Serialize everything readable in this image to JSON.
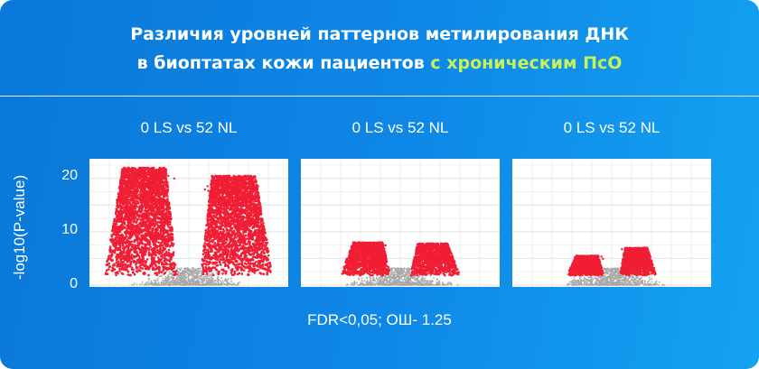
{
  "header": {
    "title_line1": "Различия уровней паттернов метилирования ДНК",
    "title_line2_prefix": "в биоптатах кожи  пациентов ",
    "title_line2_highlight": "с хроническим ПсО"
  },
  "footnote": "FDR<0,05; ОШ- 1.25",
  "colors": {
    "significant": "#f01e35",
    "nonsignificant": "#a8a8a8",
    "highlight": "#c7f25a"
  },
  "chart_data": [
    {
      "type": "scatter",
      "title": "0 LS vs 52 NL",
      "ylabel": "-log10(P-value)",
      "yticks": [
        0,
        10,
        20
      ],
      "ylim": [
        0,
        23
      ],
      "xlim": [
        -1,
        1
      ],
      "grid": true,
      "series": [
        {
          "region": "left",
          "x_range": [
            -0.85,
            -0.12
          ],
          "y_max": 22
        },
        {
          "region": "right",
          "x_range": [
            0.12,
            0.85
          ],
          "y_max": 20.5
        }
      ]
    },
    {
      "type": "scatter",
      "title": "0 LS vs 52 NL",
      "ylabel": "-log10(P-value)",
      "yticks": [
        0,
        10,
        20
      ],
      "ylim": [
        0,
        23
      ],
      "xlim": [
        -1,
        1
      ],
      "grid": true,
      "series": [
        {
          "region": "left",
          "x_range": [
            -0.6,
            -0.1
          ],
          "y_max": 8
        },
        {
          "region": "right",
          "x_range": [
            0.1,
            0.6
          ],
          "y_max": 7.8
        }
      ]
    },
    {
      "type": "scatter",
      "title": "0 LS vs 52 NL",
      "ylabel": "-log10(P-value)",
      "yticks": [
        0,
        10,
        20
      ],
      "ylim": [
        0,
        23
      ],
      "xlim": [
        -1,
        1
      ],
      "grid": true,
      "series": [
        {
          "region": "left",
          "x_range": [
            -0.45,
            -0.08
          ],
          "y_max": 5.5
        },
        {
          "region": "right",
          "x_range": [
            0.08,
            0.45
          ],
          "y_max": 7
        }
      ]
    }
  ]
}
